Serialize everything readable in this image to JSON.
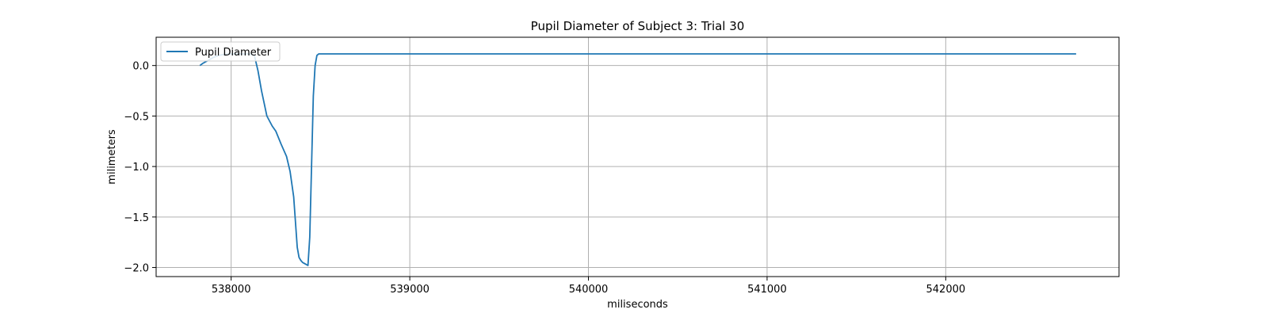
{
  "chart_data": {
    "type": "line",
    "title": "Pupil Diameter of Subject 3: Trial 30",
    "xlabel": "miliseconds",
    "ylabel": "milimeters",
    "xlim": [
      537580,
      542970
    ],
    "ylim": [
      -2.09,
      0.28
    ],
    "xticks": [
      538000,
      539000,
      540000,
      541000,
      542000
    ],
    "xtick_labels": [
      "538000",
      "539000",
      "540000",
      "541000",
      "542000"
    ],
    "yticks": [
      0.0,
      -0.5,
      -1.0,
      -1.5,
      -2.0
    ],
    "ytick_labels": [
      "0.0",
      "−0.5",
      "−1.0",
      "−1.5",
      "−2.0"
    ],
    "grid": true,
    "legend_position": "top-left",
    "series": [
      {
        "name": "Pupil Diameter",
        "color": "#1f77b4",
        "x": [
          537825,
          537840,
          537870,
          537900,
          537930,
          537960,
          538000,
          538050,
          538100,
          538130,
          538150,
          538170,
          538200,
          538230,
          538250,
          538280,
          538310,
          538330,
          538350,
          538370,
          538380,
          538390,
          538400,
          538420,
          538430,
          538440,
          538450,
          538460,
          538470,
          538480,
          538490,
          538520,
          538700,
          539500,
          540500,
          541500,
          542730
        ],
        "y": [
          0.0,
          0.02,
          0.05,
          0.08,
          0.1,
          0.11,
          0.115,
          0.115,
          0.115,
          0.1,
          -0.05,
          -0.25,
          -0.5,
          -0.6,
          -0.65,
          -0.78,
          -0.9,
          -1.05,
          -1.3,
          -1.8,
          -1.9,
          -1.93,
          -1.95,
          -1.97,
          -1.98,
          -1.7,
          -1.0,
          -0.3,
          0.0,
          0.1,
          0.115,
          0.115,
          0.115,
          0.115,
          0.115,
          0.115,
          0.115
        ]
      }
    ]
  }
}
